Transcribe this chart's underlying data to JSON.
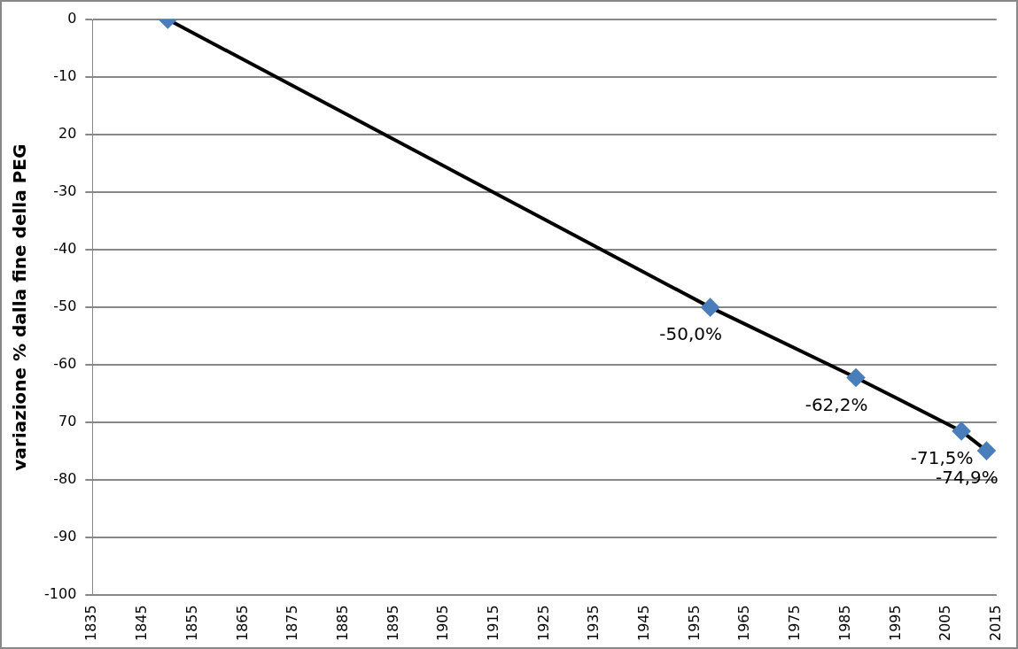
{
  "chart_data": {
    "type": "line",
    "ylabel": "variazione % dalla fine della PEG",
    "x": [
      1850,
      1958,
      1987,
      2008,
      2013
    ],
    "series": [
      {
        "color": "#000000",
        "colors": [
          "#4a7ebb",
          "#4a7ebb",
          "#4a7ebb",
          "#4a7ebb",
          "#4a7ebb"
        ],
        "values": [
          0,
          -50,
          -62.2,
          -71.5,
          -74.9
        ],
        "value_labels": [
          null,
          "-50,0%",
          "-62,2%",
          "-71,5%",
          "-74,9%"
        ]
      }
    ],
    "xlim": [
      1835,
      2015
    ],
    "xticks": [
      1835,
      1845,
      1855,
      1865,
      1875,
      1885,
      1895,
      1905,
      1915,
      1925,
      1935,
      1945,
      1955,
      1965,
      1975,
      1985,
      1995,
      2005,
      2015
    ],
    "ylim": [
      -100,
      0
    ],
    "yticks": [
      0,
      -10,
      {
        "value": -20,
        "label": "20"
      },
      -30,
      -40,
      -50,
      -60,
      {
        "value": -70,
        "label": "70"
      },
      -80,
      -90,
      -100
    ],
    "grid": "y",
    "marker": "diamond",
    "legend": false
  }
}
